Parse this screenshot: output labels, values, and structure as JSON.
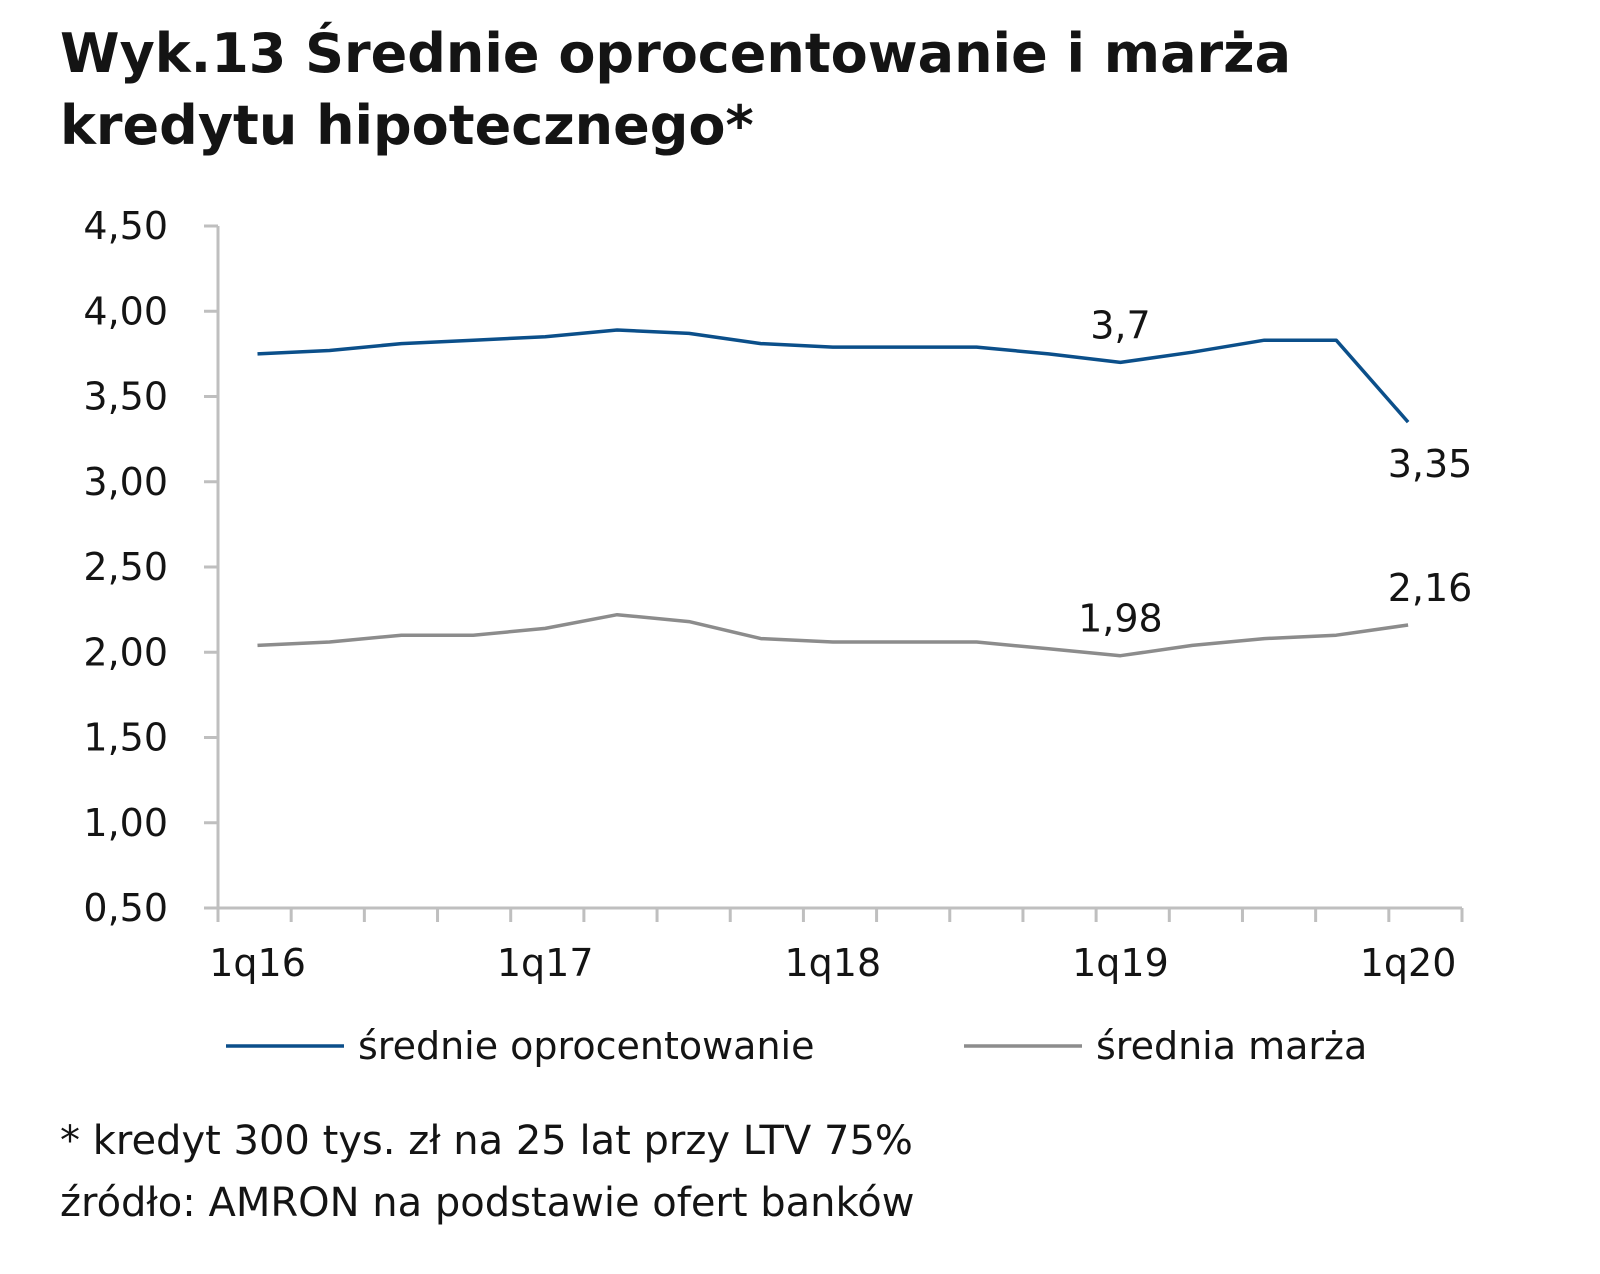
{
  "title": "Wyk.13 Średnie oprocentowanie i marża kredytu hipotecznego*",
  "footnote": "* kredyt 300 tys. zł na 25 lat przy LTV 75%",
  "source": "źródło: AMRON na podstawie ofert banków",
  "colors": {
    "series1": "#0b4f8a",
    "series2": "#8c8c8c",
    "axis": "#bfbfbf"
  },
  "chart_data": {
    "type": "line",
    "categories": [
      "1q16",
      "2q16",
      "3q16",
      "4q16",
      "1q17",
      "2q17",
      "3q17",
      "4q17",
      "1q18",
      "2q18",
      "3q18",
      "4q18",
      "1q19",
      "2q19",
      "3q19",
      "4q19",
      "1q20"
    ],
    "x_tick_labels": [
      "1q16",
      "1q17",
      "1q18",
      "1q19",
      "1q20"
    ],
    "y_tick_labels": [
      "4,50",
      "4,00",
      "3,50",
      "3,00",
      "2,50",
      "2,00",
      "1,50",
      "1,00",
      "0,50"
    ],
    "ylim": [
      0.5,
      4.5
    ],
    "xlabel": "",
    "ylabel": "",
    "legend_position": "bottom",
    "series": [
      {
        "name": "średnie oprocentowanie",
        "values": [
          3.75,
          3.77,
          3.81,
          3.83,
          3.85,
          3.89,
          3.87,
          3.81,
          3.79,
          3.79,
          3.79,
          3.75,
          3.7,
          3.76,
          3.83,
          3.83,
          3.35
        ]
      },
      {
        "name": "średnia marża",
        "values": [
          2.04,
          2.06,
          2.1,
          2.1,
          2.14,
          2.22,
          2.18,
          2.08,
          2.06,
          2.06,
          2.06,
          2.02,
          1.98,
          2.04,
          2.08,
          2.1,
          2.16
        ]
      }
    ],
    "annotations": [
      {
        "series": 0,
        "category": "1q19",
        "text": "3,7"
      },
      {
        "series": 0,
        "category": "1q20",
        "text": "3,35"
      },
      {
        "series": 1,
        "category": "1q19",
        "text": "1,98"
      },
      {
        "series": 1,
        "category": "1q20",
        "text": "2,16"
      }
    ]
  }
}
